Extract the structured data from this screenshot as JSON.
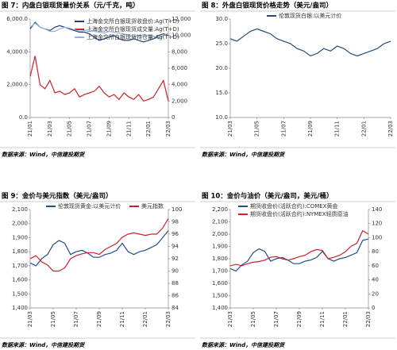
{
  "chart_data": [
    {
      "type": "line",
      "title": "图 7：内盘白银现货量价关系（元/千克，吨）",
      "source": "数据来源：Wind，中信建投期货",
      "legend": "upper right",
      "categories": [
        "21/01",
        null,
        null,
        null,
        "21/03",
        null,
        null,
        null,
        "21/05",
        null,
        null,
        null,
        "21/07",
        null,
        null,
        null,
        "21/09",
        null,
        null,
        null,
        "21/11",
        null,
        null,
        null,
        "22/01",
        null,
        null,
        null,
        "22/03"
      ],
      "ylim": [
        0,
        6000
      ],
      "yticks": [
        {
          "value": 0,
          "label": "0.0"
        },
        {
          "value": 2000,
          "label": "2,000.0"
        },
        {
          "value": 4000,
          "label": "4,000.0"
        },
        {
          "value": 6000,
          "label": "6,000.0"
        }
      ],
      "y2lim": [
        0,
        12000
      ],
      "y2ticks": [
        0,
        {
          "value": 2000,
          "label": "2,000"
        },
        {
          "value": 4000,
          "label": "4,000"
        },
        {
          "value": 6000,
          "label": "6,000"
        },
        {
          "value": 8000,
          "label": "8,000"
        },
        {
          "value": 10000,
          "label": "10,000"
        },
        {
          "value": 12000,
          "label": "12,000"
        }
      ],
      "series": [
        {
          "name": "上海金交所白银现货收盘价:Ag(T+D)",
          "color": "#1f3f7a",
          "values": [
            5400,
            5800,
            5500,
            5400,
            5300,
            5500,
            5600,
            5500,
            5400,
            5300,
            5200,
            5200,
            5100,
            4900,
            4700,
            4800,
            4900,
            5000,
            4800,
            4700,
            4700,
            4800,
            4700,
            4600,
            4700,
            4800,
            5000,
            5100,
            5000
          ]
        },
        {
          "name": "上海金交所白银现货成交量:Ag(T+D)",
          "color": "#d0202a",
          "axis": "y2",
          "values": [
            5000,
            7500,
            4000,
            3500,
            4500,
            3000,
            3200,
            2800,
            3000,
            3500,
            2500,
            2800,
            3000,
            3200,
            3800,
            3000,
            2500,
            2800,
            2200,
            3000,
            2500,
            2200,
            2800,
            2000,
            2200,
            2500,
            3500,
            4500,
            2000
          ]
        },
        {
          "name": "上海金交所白银现货持仓量:Ag(T+D)",
          "color": "#8fb4d9",
          "axis": "y2",
          "values": [
            11000,
            11500,
            11000,
            10800,
            10500,
            10500,
            10800,
            11000,
            10900,
            10700,
            10500,
            10600,
            10700,
            10500,
            10400,
            10300,
            10500,
            10400,
            10300,
            10200,
            10000,
            9800,
            10000,
            10100,
            10000,
            9900,
            9600,
            10000,
            10300
          ]
        }
      ]
    },
    {
      "type": "line",
      "title": "图 8：外盘白银现货价格走势（美元/盎司）",
      "source": "数据来源：Wind，中信建投期货",
      "legend": "upper center",
      "categories": [
        "21/03",
        null,
        null,
        null,
        "21/05",
        null,
        null,
        null,
        "21/07",
        null,
        null,
        null,
        "21/09",
        null,
        null,
        null,
        "21/11",
        null,
        null,
        null,
        "22/01",
        null,
        null,
        null,
        "22/03"
      ],
      "ylim": [
        10,
        30
      ],
      "yticks": [
        {
          "value": 10,
          "label": "10.0"
        },
        {
          "value": 15,
          "label": "15.0"
        },
        {
          "value": 20,
          "label": "20.0"
        },
        {
          "value": 25,
          "label": "25.0"
        },
        {
          "value": 30,
          "label": "30.0"
        }
      ],
      "series": [
        {
          "name": "伦敦现货白银:以美元计价",
          "color": "#1f4e7a",
          "values": [
            26,
            25.5,
            26.5,
            27.5,
            28,
            27.5,
            27,
            26,
            25.5,
            25,
            24,
            23.5,
            22.5,
            23,
            24,
            23.5,
            24.5,
            24,
            23,
            22.5,
            23,
            23.5,
            24,
            25,
            25.5
          ]
        }
      ]
    },
    {
      "type": "line",
      "title": "图 9：金价与美元指数（美元/盎司）",
      "source": "数据来源：Wind，中信建投期货",
      "legend": "top",
      "categories": [
        "21/03",
        null,
        null,
        null,
        "21/05",
        null,
        null,
        null,
        "21/07",
        null,
        null,
        null,
        "21/09",
        null,
        null,
        null,
        "21/11",
        null,
        null,
        null,
        "22/01",
        null,
        null,
        null,
        "22/03"
      ],
      "ylim": [
        1400,
        2100
      ],
      "yticks": [
        {
          "value": 1400,
          "label": "1,400"
        },
        {
          "value": 1500,
          "label": "1,500"
        },
        {
          "value": 1600,
          "label": "1,600"
        },
        {
          "value": 1700,
          "label": "1,700"
        },
        {
          "value": 1800,
          "label": "1,800"
        },
        {
          "value": 1900,
          "label": "1,900"
        },
        {
          "value": 2000,
          "label": "2,000"
        },
        {
          "value": 2100,
          "label": "2,100"
        }
      ],
      "y2lim": [
        84,
        100
      ],
      "y2ticks": [
        84,
        86,
        88,
        90,
        92,
        94,
        96,
        98,
        100
      ],
      "series": [
        {
          "name": "伦敦现货黄金:以美元计价",
          "color": "#1f4e8c",
          "values": [
            1720,
            1700,
            1750,
            1780,
            1850,
            1880,
            1860,
            1780,
            1800,
            1810,
            1790,
            1760,
            1760,
            1780,
            1790,
            1810,
            1860,
            1800,
            1780,
            1800,
            1810,
            1830,
            1850,
            1900,
            1950
          ]
        },
        {
          "name": "美元指数",
          "color": "#d0202a",
          "axis": "y2",
          "values": [
            92,
            92.5,
            91.5,
            91,
            90,
            90,
            90.5,
            92,
            92.5,
            92.8,
            93,
            93,
            92.7,
            93.5,
            94,
            94.5,
            95.5,
            96,
            96.2,
            96,
            95.8,
            96,
            96,
            97,
            98.5
          ]
        }
      ]
    },
    {
      "type": "line",
      "title": "图 10：金价与油价（美元/盎司，美元/桶）",
      "source": "数据来源：Wind，中信建投期货",
      "legend": "upper left",
      "categories": [
        "21/03",
        null,
        null,
        null,
        "21/05",
        null,
        null,
        null,
        "21/07",
        null,
        null,
        null,
        "21/09",
        null,
        null,
        null,
        "21/11",
        null,
        null,
        null,
        "22/01",
        null,
        null,
        null,
        "22/03"
      ],
      "ylim": [
        1400,
        2200
      ],
      "yticks": [
        {
          "value": 1400,
          "label": "1,400"
        },
        {
          "value": 1500,
          "label": "1,500"
        },
        {
          "value": 1600,
          "label": "1,600"
        },
        {
          "value": 1700,
          "label": "1,700"
        },
        {
          "value": 1800,
          "label": "1,800"
        },
        {
          "value": 1900,
          "label": "1,900"
        },
        {
          "value": 2000,
          "label": "2,000"
        },
        {
          "value": 2100,
          "label": "2,100"
        },
        {
          "value": 2200,
          "label": "2,200"
        }
      ],
      "y2lim": [
        0,
        140
      ],
      "y2ticks": [
        0,
        20,
        40,
        60,
        80,
        100,
        120,
        140
      ],
      "series": [
        {
          "name": "期货收盘价(活跃合约):COMEX黄金",
          "color": "#1f4e8c",
          "values": [
            1720,
            1700,
            1750,
            1780,
            1850,
            1880,
            1860,
            1780,
            1800,
            1810,
            1790,
            1760,
            1760,
            1780,
            1790,
            1810,
            1860,
            1800,
            1780,
            1800,
            1810,
            1830,
            1850,
            1950,
            1960
          ]
        },
        {
          "name": "期货收盘价(活跃合约):NYMEX轻质原油",
          "color": "#d0202a",
          "axis": "y2",
          "values": [
            60,
            62,
            60,
            63,
            65,
            66,
            68,
            72,
            73,
            70,
            68,
            70,
            73,
            75,
            80,
            83,
            82,
            70,
            72,
            75,
            80,
            88,
            92,
            110,
            105
          ]
        }
      ]
    }
  ]
}
